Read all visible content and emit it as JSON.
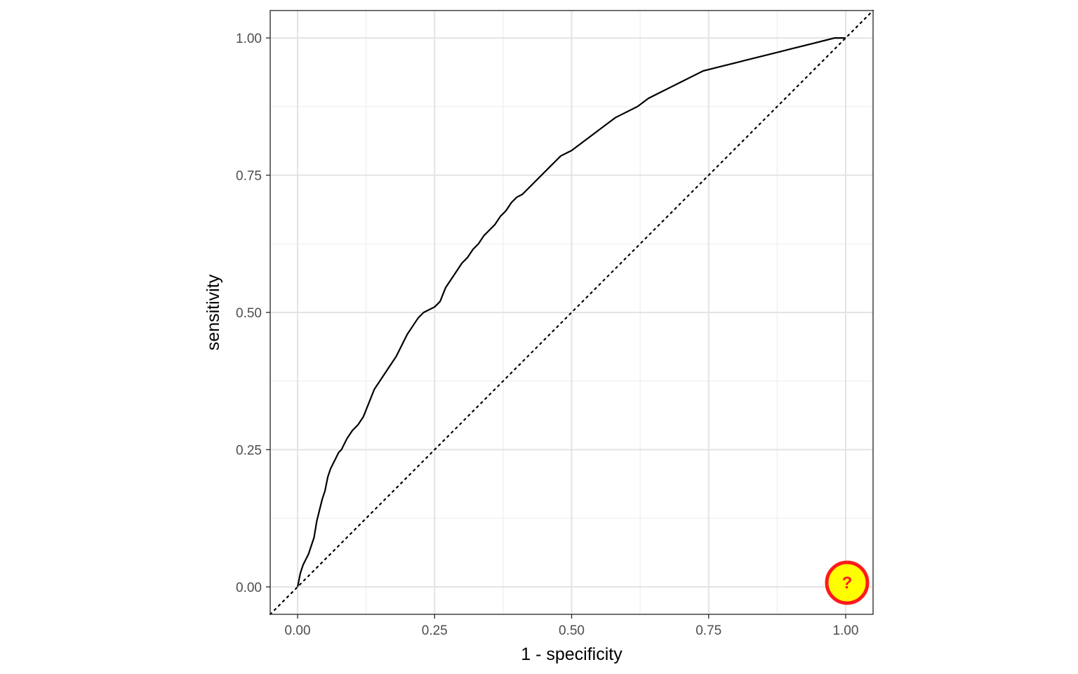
{
  "chart_data": {
    "type": "line",
    "title": "",
    "xlabel": "1 - specificity",
    "ylabel": "sensitivity",
    "xlim": [
      -0.05,
      1.05
    ],
    "ylim": [
      -0.05,
      1.05
    ],
    "grid": true,
    "x_ticks": [
      0,
      0.25,
      0.5,
      0.75,
      1
    ],
    "x_tick_labels": [
      "0.00",
      "0.25",
      "0.50",
      "0.75",
      "1.00"
    ],
    "y_ticks": [
      0,
      0.25,
      0.5,
      0.75,
      1
    ],
    "y_tick_labels": [
      "0.00",
      "0.25",
      "0.50",
      "0.75",
      "1.00"
    ],
    "series": [
      {
        "line_style": "solid",
        "color": "#000000",
        "x": [
          0.0,
          0.005,
          0.01,
          0.015,
          0.02,
          0.025,
          0.03,
          0.035,
          0.04,
          0.045,
          0.05,
          0.055,
          0.06,
          0.065,
          0.07,
          0.075,
          0.08,
          0.09,
          0.1,
          0.11,
          0.12,
          0.13,
          0.14,
          0.15,
          0.16,
          0.17,
          0.18,
          0.19,
          0.2,
          0.21,
          0.22,
          0.23,
          0.24,
          0.25,
          0.26,
          0.27,
          0.28,
          0.29,
          0.3,
          0.31,
          0.32,
          0.33,
          0.34,
          0.35,
          0.36,
          0.37,
          0.38,
          0.39,
          0.4,
          0.41,
          0.42,
          0.43,
          0.44,
          0.45,
          0.46,
          0.47,
          0.48,
          0.49,
          0.5,
          0.52,
          0.54,
          0.56,
          0.58,
          0.6,
          0.62,
          0.64,
          0.66,
          0.68,
          0.7,
          0.72,
          0.74,
          0.76,
          0.78,
          0.8,
          0.82,
          0.84,
          0.86,
          0.88,
          0.9,
          0.92,
          0.94,
          0.96,
          0.98,
          1.0
        ],
        "y": [
          0.0,
          0.025,
          0.04,
          0.05,
          0.06,
          0.075,
          0.09,
          0.12,
          0.14,
          0.16,
          0.175,
          0.2,
          0.215,
          0.225,
          0.235,
          0.245,
          0.25,
          0.27,
          0.285,
          0.295,
          0.31,
          0.335,
          0.36,
          0.375,
          0.39,
          0.405,
          0.42,
          0.44,
          0.46,
          0.475,
          0.49,
          0.5,
          0.505,
          0.51,
          0.52,
          0.545,
          0.56,
          0.575,
          0.59,
          0.6,
          0.615,
          0.625,
          0.64,
          0.65,
          0.66,
          0.675,
          0.685,
          0.7,
          0.71,
          0.715,
          0.725,
          0.735,
          0.745,
          0.755,
          0.765,
          0.775,
          0.785,
          0.79,
          0.795,
          0.81,
          0.825,
          0.84,
          0.855,
          0.865,
          0.875,
          0.89,
          0.9,
          0.91,
          0.92,
          0.93,
          0.94,
          0.945,
          0.95,
          0.955,
          0.96,
          0.965,
          0.97,
          0.975,
          0.98,
          0.985,
          0.99,
          0.995,
          1.0,
          1.0
        ]
      },
      {
        "line_style": "dotted",
        "color": "#000000",
        "x": [
          -0.05,
          1.05
        ],
        "y": [
          -0.05,
          1.05
        ]
      }
    ]
  },
  "help_button": {
    "symbol": "?",
    "fill_color": "#ffff00",
    "stroke_color": "#ff1a1a"
  }
}
